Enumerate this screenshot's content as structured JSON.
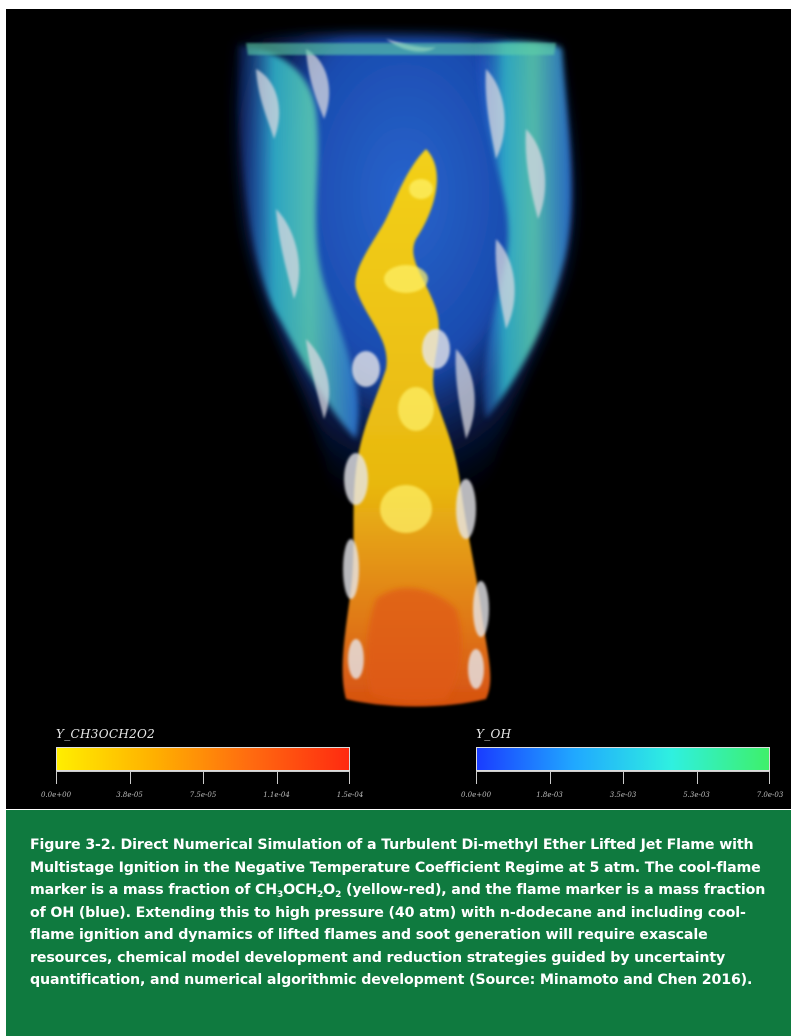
{
  "figure": {
    "colorbar_left": {
      "title": "Y_CH3OCH2O2",
      "ticks": [
        "0.0e+00",
        "3.8e-05",
        "7.5e-05",
        "1.1e-04",
        "1.5e-04"
      ],
      "colors": [
        "#ffee00",
        "#ffb000",
        "#ff6a10",
        "#ff2a10"
      ]
    },
    "colorbar_right": {
      "title": "Y_OH",
      "ticks": [
        "0.0e+00",
        "1.8e-03",
        "3.5e-03",
        "5.3e-03",
        "7.0e-03"
      ],
      "colors": [
        "#1a3cff",
        "#20a8ff",
        "#2ff0e0",
        "#3ef06a"
      ]
    }
  },
  "caption": {
    "part1": "Figure 3-2. Direct Numerical Simulation of a Turbulent Di-methyl Ether Lifted Jet Flame with Multistage Ignition in the Negative Temperature Coefficient Regime at 5 atm. The cool-flame marker is a mass fraction of CH",
    "sub1": "3",
    "part2": "OCH",
    "sub2": "2",
    "part3": "O",
    "sub3": "2",
    "part4": " (yellow-red), and the flame marker is a mass fraction of OH (blue). Extending this to high pressure (40 atm) with n-dodecane and including cool-flame ignition and dynamics of lifted flames and soot generation will require exascale resources, chemical model development and reduction strategies guided by uncertainty quantification, and numerical algorithmic development (Source: Minamoto and Chen 2016)."
  }
}
